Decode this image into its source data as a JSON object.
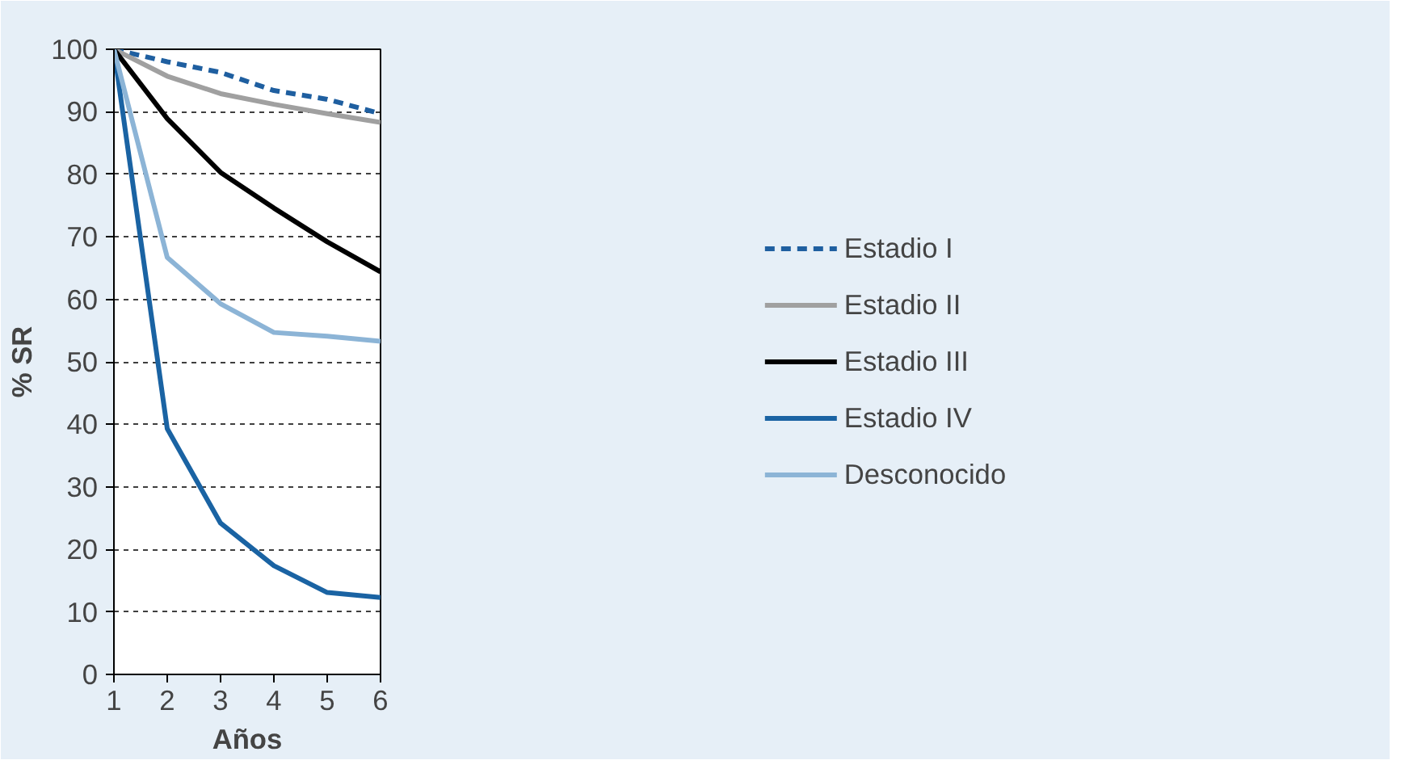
{
  "chart_data": {
    "type": "line",
    "xlabel": "Años",
    "ylabel": "% SR",
    "x": [
      1,
      2,
      3,
      4,
      5,
      6
    ],
    "xlim": [
      1,
      6
    ],
    "xticks": [
      1,
      2,
      3,
      4,
      5,
      6
    ],
    "ylim": [
      0,
      100
    ],
    "yticks": [
      0,
      10,
      20,
      30,
      40,
      50,
      60,
      70,
      80,
      90,
      100
    ],
    "grid": "y",
    "legend": "right",
    "marker": "none",
    "series": [
      {
        "name": "Estadio I",
        "color": "#1f5fa0",
        "line_style": "dashed",
        "values": [
          100,
          98,
          96.3,
          93.4,
          92,
          89.7
        ]
      },
      {
        "name": "Estadio II",
        "color": "#a0a0a0",
        "values": [
          100,
          95.7,
          92.9,
          91.2,
          89.7,
          88.3
        ]
      },
      {
        "name": "Estadio III",
        "color": "#000000",
        "values": [
          100,
          88.9,
          80.3,
          74.6,
          69.2,
          64.4
        ]
      },
      {
        "name": "Estadio IV",
        "color": "#1a63a3",
        "values": [
          100,
          39.3,
          24.2,
          17.4,
          13.1,
          12.3
        ]
      },
      {
        "name": "Desconocido",
        "color": "#8cb4d6",
        "values": [
          100,
          66.7,
          59.3,
          54.7,
          54.1,
          53.3
        ]
      }
    ]
  }
}
